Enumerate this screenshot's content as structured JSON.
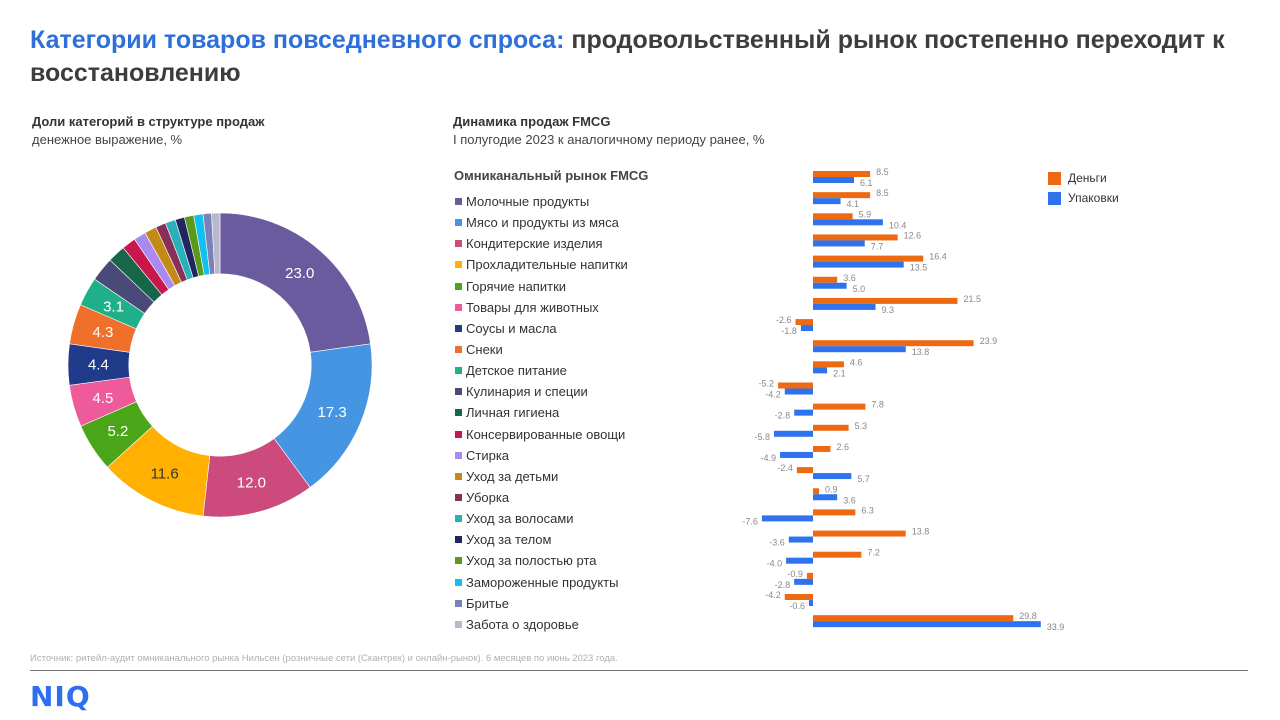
{
  "header": {
    "title_accent": "Категории товаров повседневного спроса:",
    "title_rest": " продовольственный рынок постепенно переходит к восстановлению"
  },
  "left_panel": {
    "heading": "Доли категорий в структуре продаж",
    "subheading": "денежное выражение, %"
  },
  "right_panel": {
    "heading": "Динамика продаж FMCG",
    "subheading": "I полугодие 2023 к аналогичному периоду ранее, %",
    "legend_head": "Омниканальный рынок FMCG"
  },
  "series_legend": [
    {
      "name": "Деньги",
      "color": "#ee6a12"
    },
    {
      "name": "Упаковки",
      "color": "#2e72ee"
    }
  ],
  "footer": {
    "source": "Источник: ритейл-аудит омниканального рынка Нильсен (розничные сети (Скантрек) и онлайн-рынок). 6 месяцев по июнь 2023 года.",
    "logo": "NIQ"
  },
  "chart_data": [
    {
      "type": "pie",
      "title": "Доли категорий в структуре продаж",
      "subtitle": "денежное выражение, %",
      "categories": [
        "Молочные продукты",
        "Мясо и продукты из мяса",
        "Кондитерские изделия",
        "Прохладительные напитки",
        "Горячие напитки",
        "Товары для животных",
        "Соусы и масла",
        "Снеки",
        "Детское питание",
        "Кулинария и специи",
        "Личная гигиена",
        "Консервированные овощи",
        "Стирка",
        "Уход за детьми",
        "Уборка",
        "Уход за волосами",
        "Уход за телом",
        "Уход за полостью рта",
        "Замороженные продукты",
        "Бритье",
        "Забота о здоровье"
      ],
      "values": [
        23.0,
        17.3,
        12.0,
        11.6,
        5.2,
        4.5,
        4.4,
        4.3,
        3.1,
        2.6,
        1.9,
        1.5,
        1.3,
        1.3,
        1.1,
        1.1,
        1.0,
        1.0,
        1.0,
        0.9,
        0.9
      ],
      "labels_shown": [
        "23.0",
        "17.3",
        "12.0",
        "11.6",
        "5.2",
        "4.5",
        "4.4",
        "4.3",
        "3.1"
      ],
      "colors": [
        "#6a5a9e",
        "#4595e3",
        "#cc4a7c",
        "#ffb000",
        "#4aa618",
        "#ef5a9a",
        "#1f3b8a",
        "#f06f2a",
        "#1fb08a",
        "#4a4a78",
        "#17664a",
        "#c8174a",
        "#a98af0",
        "#c48a16",
        "#8a2f5a",
        "#2ab0b8",
        "#22265e",
        "#5a9a1a",
        "#12c0f0",
        "#7a80b8",
        "#b8b8cc"
      ],
      "hole": 0.6
    },
    {
      "type": "bar",
      "orientation": "horizontal",
      "title": "Динамика продаж FMCG",
      "subtitle": "I полугодие 2023 к аналогичному периоду ранее, %",
      "categories": [
        "Омниканальный рынок FMCG",
        "Молочные продукты",
        "Мясо и продукты из мяса",
        "Кондитерские изделия",
        "Прохладительные напитки",
        "Горячие напитки",
        "Товары для животных",
        "Соусы и масла",
        "Снеки",
        "Детское питание",
        "Кулинария и специи",
        "Личная гигиена",
        "Консервированные овощи",
        "Стирка",
        "Уход за детьми",
        "Уборка",
        "Уход за волосами",
        "Уход за телом",
        "Уход за полостью рта",
        "Замороженные продукты",
        "Бритье",
        "Забота о здоровье"
      ],
      "series": [
        {
          "name": "Деньги",
          "color": "#ee6a12",
          "values": [
            8.5,
            8.5,
            5.9,
            12.6,
            16.4,
            3.6,
            21.5,
            -2.6,
            23.9,
            4.6,
            -5.2,
            7.8,
            5.3,
            2.6,
            -2.4,
            0.9,
            6.3,
            13.8,
            7.2,
            -0.9,
            -4.2,
            29.8
          ]
        },
        {
          "name": "Упаковки",
          "color": "#2e72ee",
          "values": [
            6.1,
            4.1,
            10.4,
            7.7,
            13.5,
            5.0,
            9.3,
            -1.8,
            13.8,
            2.1,
            -4.2,
            -2.8,
            -5.8,
            -4.9,
            5.7,
            3.6,
            -7.6,
            -3.6,
            -4.0,
            -2.8,
            -0.6,
            33.9
          ]
        }
      ],
      "legend": "top-right",
      "grid": false
    }
  ]
}
